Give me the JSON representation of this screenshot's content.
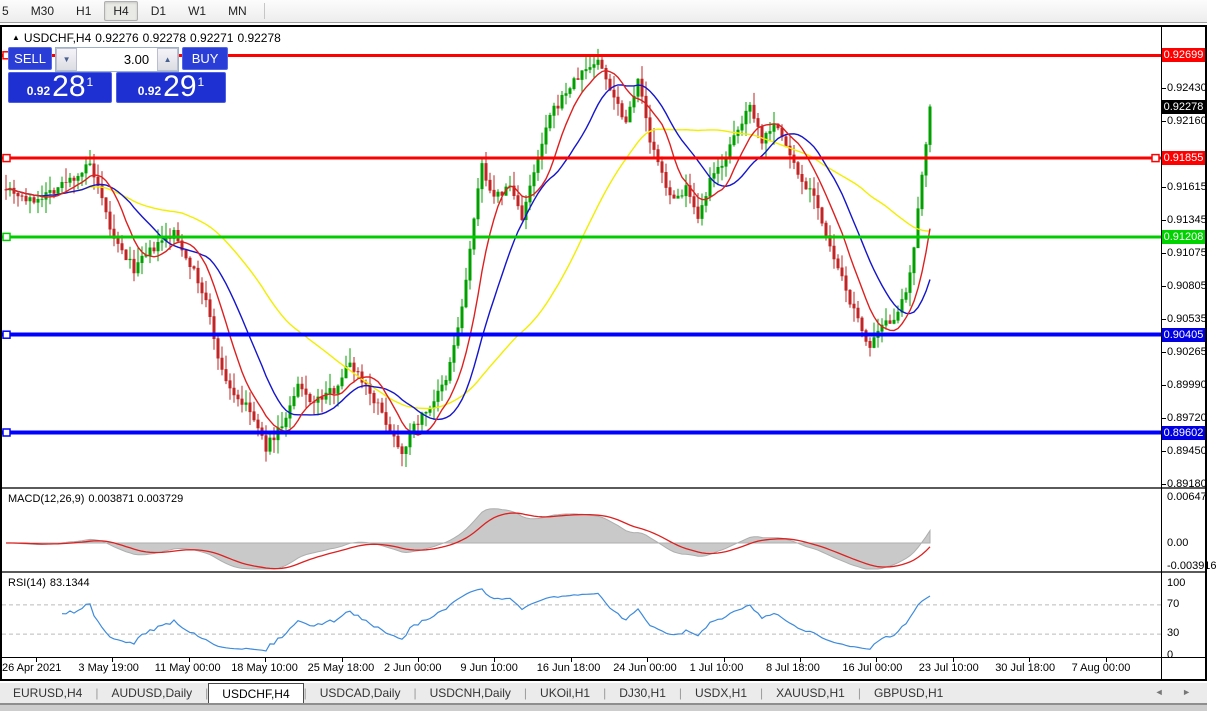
{
  "toolbar": {
    "timeframes": [
      {
        "label": "5",
        "active": false
      },
      {
        "label": "M30",
        "active": false
      },
      {
        "label": "H1",
        "active": false
      },
      {
        "label": "H4",
        "active": true
      },
      {
        "label": "D1",
        "active": false
      },
      {
        "label": "W1",
        "active": false
      },
      {
        "label": "MN",
        "active": false
      }
    ]
  },
  "chart_header": {
    "collapse_marker": "▲",
    "symbol": "USDCHF,H4",
    "open": "0.92276",
    "high": "0.92278",
    "low": "0.92271",
    "close": "0.92278"
  },
  "trade_panel": {
    "sell_label": "SELL",
    "buy_label": "BUY",
    "volume": "3.00",
    "spin_down": "▼",
    "spin_up": "▲",
    "sell_price_prefix": "0.92",
    "sell_price_main": "28",
    "sell_price_sup": "1",
    "buy_price_prefix": "0.92",
    "buy_price_main": "29",
    "buy_price_sup": "1"
  },
  "chart_data": {
    "type": "candlestick",
    "symbol": "USDCHF",
    "timeframe": "H4",
    "bars": 232,
    "bar_spacing": 4.0,
    "seed": 7,
    "current_price": 0.92278,
    "price_axis": {
      "range": [
        0.89155,
        0.92931
      ],
      "ticks": [
        "0.92430",
        "0.92160",
        "0.91615",
        "0.91345",
        "0.91075",
        "0.90805",
        "0.90535",
        "0.90265",
        "0.89990",
        "0.89720",
        "0.89450",
        "0.89180"
      ]
    },
    "price_badges": [
      {
        "label": "0.92699",
        "price": 0.92699,
        "bg": "#ff0000"
      },
      {
        "label": "0.92278",
        "price": 0.92278,
        "bg": "#000000"
      },
      {
        "label": "0.91855",
        "price": 0.91855,
        "bg": "#ff0000"
      },
      {
        "label": "0.91208",
        "price": 0.91208,
        "bg": "#00d300"
      },
      {
        "label": "0.90405",
        "price": 0.90405,
        "bg": "#0000e0"
      },
      {
        "label": "0.89602",
        "price": 0.89602,
        "bg": "#0000e0"
      }
    ],
    "hlines": [
      {
        "price": 0.92699,
        "color": "#ff0000",
        "width": 3,
        "right_handle": false
      },
      {
        "price": 0.91855,
        "color": "#ff0000",
        "width": 3,
        "right_handle": true
      },
      {
        "price": 0.91208,
        "color": "#00cc00",
        "width": 3,
        "right_handle": false
      },
      {
        "price": 0.90405,
        "color": "#0000ff",
        "width": 4,
        "right_handle": false
      },
      {
        "price": 0.89602,
        "color": "#0000ff",
        "width": 4,
        "right_handle": false
      }
    ],
    "candle_colors": {
      "up": "#00a000",
      "down": "#c22525"
    },
    "moving_averages": [
      {
        "period": 45,
        "color": "#f2ee00"
      },
      {
        "period": 18,
        "color": "#1515cc"
      },
      {
        "period": 9,
        "color": "#dd2020"
      }
    ],
    "price_path": [
      [
        0,
        0.9163
      ],
      [
        6,
        0.915
      ],
      [
        12,
        0.916
      ],
      [
        18,
        0.9172
      ],
      [
        21,
        0.918
      ],
      [
        24,
        0.915
      ],
      [
        27,
        0.9118
      ],
      [
        32,
        0.9095
      ],
      [
        37,
        0.9112
      ],
      [
        42,
        0.9124
      ],
      [
        46,
        0.91
      ],
      [
        50,
        0.9068
      ],
      [
        54,
        0.901
      ],
      [
        57,
        0.8992
      ],
      [
        61,
        0.8978
      ],
      [
        65,
        0.8948
      ],
      [
        70,
        0.8972
      ],
      [
        73,
        0.8998
      ],
      [
        77,
        0.8985
      ],
      [
        82,
        0.8996
      ],
      [
        86,
        0.9018
      ],
      [
        90,
        0.9
      ],
      [
        94,
        0.8976
      ],
      [
        99,
        0.8945
      ],
      [
        102,
        0.8966
      ],
      [
        106,
        0.8982
      ],
      [
        110,
        0.9002
      ],
      [
        114,
        0.9062
      ],
      [
        117,
        0.9135
      ],
      [
        119,
        0.918
      ],
      [
        122,
        0.9152
      ],
      [
        126,
        0.9163
      ],
      [
        129,
        0.9138
      ],
      [
        132,
        0.9172
      ],
      [
        136,
        0.922
      ],
      [
        140,
        0.924
      ],
      [
        144,
        0.9256
      ],
      [
        148,
        0.9266
      ],
      [
        151,
        0.9244
      ],
      [
        155,
        0.9216
      ],
      [
        158,
        0.9252
      ],
      [
        161,
        0.92
      ],
      [
        164,
        0.9172
      ],
      [
        167,
        0.915
      ],
      [
        170,
        0.9162
      ],
      [
        173,
        0.9133
      ],
      [
        176,
        0.9166
      ],
      [
        179,
        0.9182
      ],
      [
        184,
        0.9214
      ],
      [
        186,
        0.9232
      ],
      [
        189,
        0.92
      ],
      [
        192,
        0.9216
      ],
      [
        195,
        0.9196
      ],
      [
        199,
        0.9166
      ],
      [
        202,
        0.9158
      ],
      [
        205,
        0.912
      ],
      [
        209,
        0.9086
      ],
      [
        212,
        0.906
      ],
      [
        216,
        0.903
      ],
      [
        219,
        0.9046
      ],
      [
        222,
        0.9056
      ],
      [
        225,
        0.9072
      ],
      [
        227,
        0.911
      ],
      [
        229,
        0.9172
      ],
      [
        231,
        0.9228
      ]
    ],
    "macd": {
      "label": "MACD(12,26,9)",
      "values": "0.003871 0.003729",
      "params": [
        12,
        26,
        9
      ],
      "axis": [
        "0.00647",
        "0.00",
        "-0.003916"
      ],
      "hist_color": "#c9c9c9",
      "hist_edge": "#aeaeae",
      "signal_color": "#dd2020"
    },
    "rsi": {
      "label": "RSI(14)",
      "value": "83.1344",
      "period": 14,
      "axis": [
        "100",
        "70",
        "30",
        "0"
      ],
      "levels": [
        70,
        30
      ],
      "color": "#3d8bdd"
    }
  },
  "time_axis": [
    "26 Apr 2021",
    "3 May 19:00",
    "11 May 00:00",
    "18 May 10:00",
    "25 May 18:00",
    "2 Jun 00:00",
    "9 Jun 10:00",
    "16 Jun 18:00",
    "24 Jun 00:00",
    "1 Jul 10:00",
    "8 Jul 18:00",
    "16 Jul 00:00",
    "23 Jul 10:00",
    "30 Jul 18:00",
    "7 Aug 00:00"
  ],
  "tabs": {
    "items": [
      "EURUSD,H4",
      "AUDUSD,Daily",
      "USDCHF,H4",
      "USDCAD,Daily",
      "USDCNH,Daily",
      "UKOil,H1",
      "DJ30,H1",
      "USDX,H1",
      "XAUUSD,H1",
      "GBPUSD,H1"
    ],
    "active": "USDCHF,H4",
    "scroll_left": "◄",
    "scroll_right": "►"
  }
}
